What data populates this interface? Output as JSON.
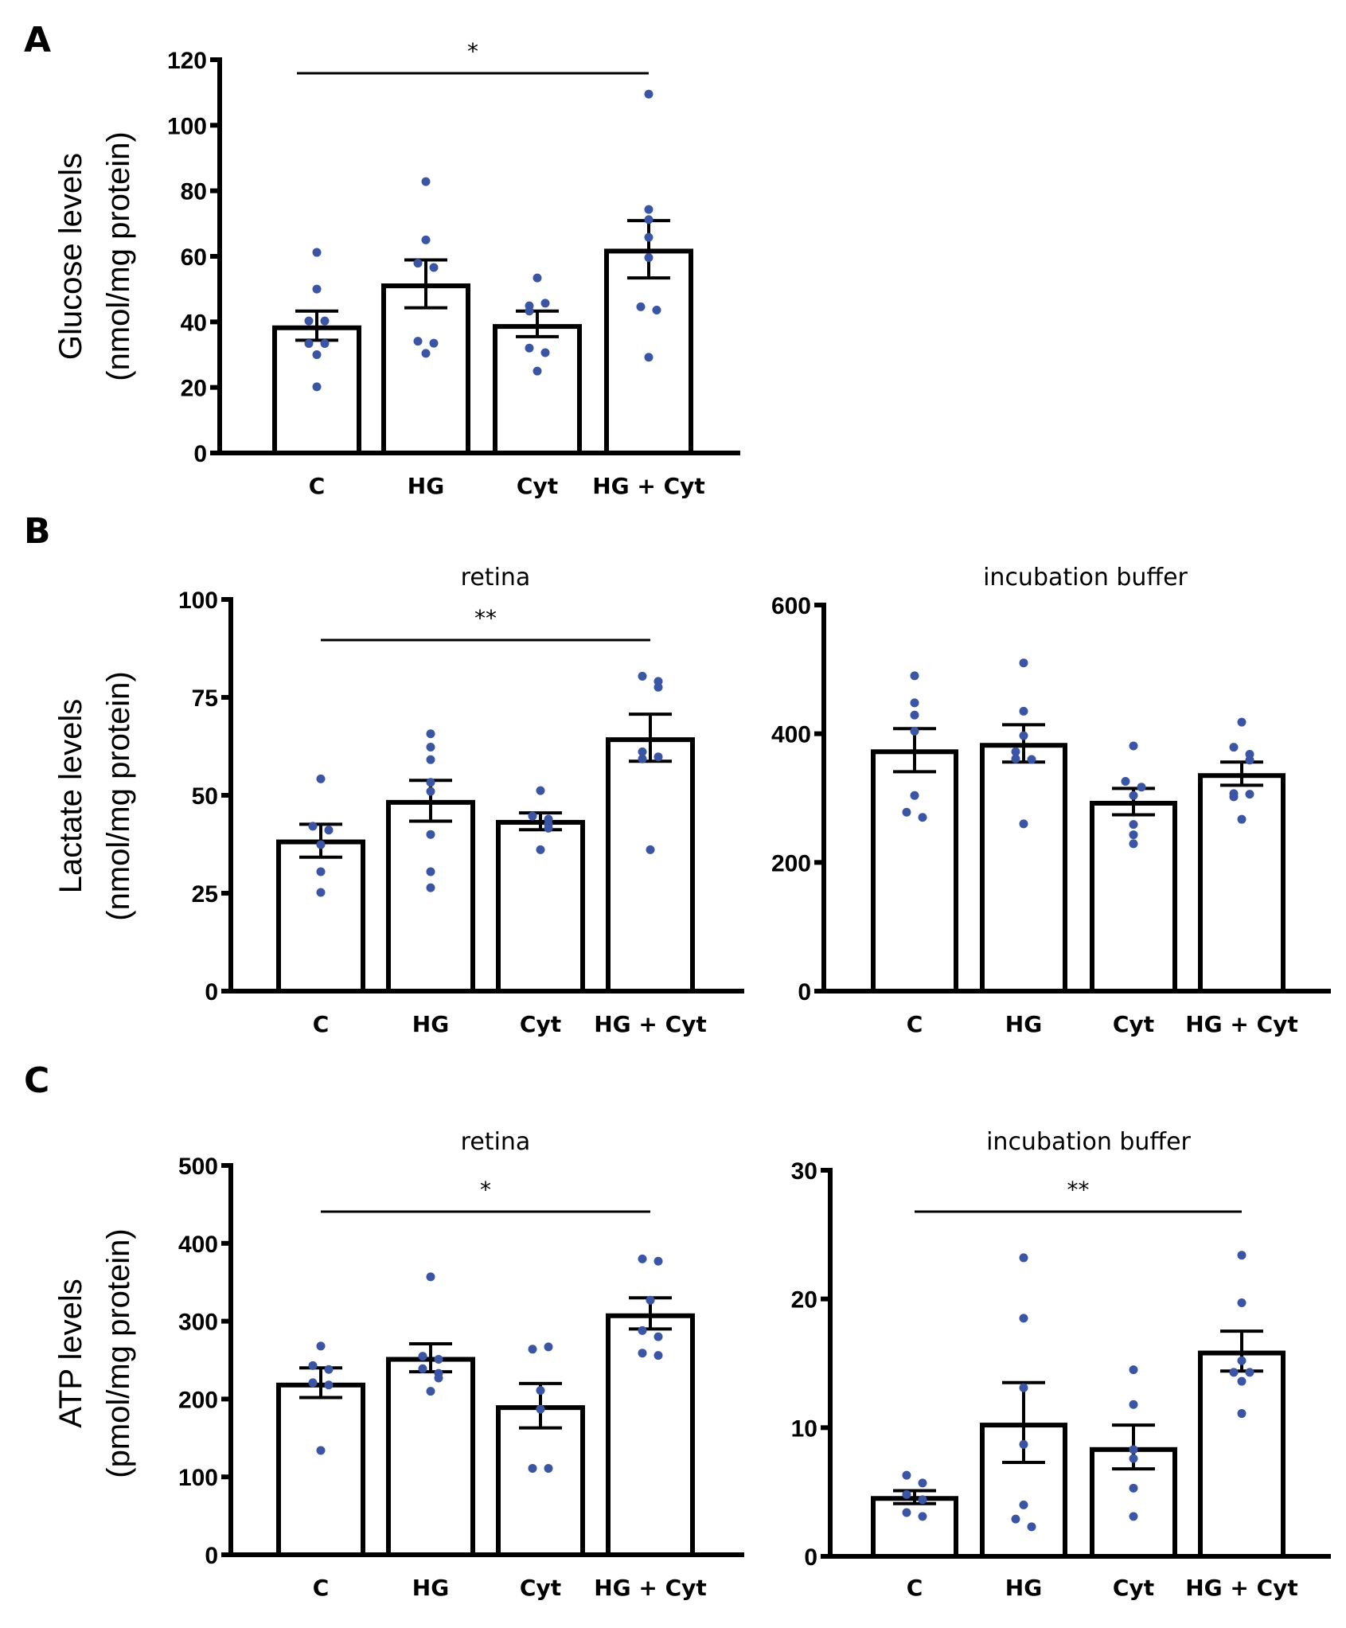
{
  "figure": {
    "panel_letters": [
      "A",
      "B",
      "C"
    ],
    "point_color": "#3a55a4",
    "bar_fill": "#ffffff",
    "line_color": "#000000"
  },
  "chart_data": [
    {
      "id": "A",
      "type": "bar",
      "title": "",
      "ylabel_line1": "Glucose levels",
      "ylabel_line2": "(nmol/mg protein)",
      "categories": [
        "C",
        "HG",
        "Cyt",
        "HG + Cyt"
      ],
      "ylim": [
        0,
        120
      ],
      "yticks": [
        0,
        20,
        40,
        60,
        80,
        100,
        120
      ],
      "values": [
        38.2,
        51.0,
        38.6,
        61.6
      ],
      "sem_upper": [
        43.3,
        58.9,
        43.3,
        70.9
      ],
      "sem_lower": [
        34.4,
        44.3,
        35.5,
        53.4
      ],
      "points": [
        [
          61.2,
          50.0,
          40.3,
          40.3,
          33.4,
          33.4,
          30.0,
          20.2
        ],
        [
          82.8,
          65.0,
          57.9,
          56.6,
          34.1,
          33.5,
          30.4
        ],
        [
          53.4,
          44.9,
          45.7,
          43.3,
          32.0,
          30.6,
          25.0
        ],
        [
          109.5,
          74.3,
          71.2,
          65.8,
          59.6,
          44.6,
          43.6,
          29.2
        ]
      ],
      "significance": {
        "from": "C",
        "to": "HG + Cyt",
        "label": "*"
      }
    },
    {
      "id": "B-retina",
      "type": "bar",
      "title": "retina",
      "ylabel_line1": "Lactate levels",
      "ylabel_line2": "(nmol/mg protein)",
      "categories": [
        "C",
        "HG",
        "Cyt",
        "HG + Cyt"
      ],
      "ylim": [
        0,
        100
      ],
      "yticks": [
        0,
        25,
        50,
        75,
        100
      ],
      "values": [
        38.1,
        48.2,
        43.1,
        64.2
      ],
      "sem_upper": [
        42.6,
        53.8,
        45.5,
        70.7
      ],
      "sem_lower": [
        34.2,
        43.4,
        41.2,
        58.7
      ],
      "points": [
        [
          54.2,
          42.1,
          41.1,
          37.4,
          30.5,
          25.2
        ],
        [
          65.7,
          62.3,
          59.1,
          53.3,
          51.0,
          40.0,
          30.5,
          26.4
        ],
        [
          51.2,
          44.7,
          43.9,
          42.6,
          41.6,
          36.1
        ],
        [
          80.4,
          79.1,
          77.6,
          61.1,
          59.8,
          59.3,
          36.1
        ]
      ],
      "significance": {
        "from": "C",
        "to": "HG + Cyt",
        "label": "**"
      }
    },
    {
      "id": "B-buffer",
      "type": "bar",
      "title": "incubation buffer",
      "ylabel_line1": "",
      "ylabel_line2": "",
      "categories": [
        "C",
        "HG",
        "Cyt",
        "HG + Cyt"
      ],
      "ylim": [
        0,
        600
      ],
      "yticks": [
        0,
        200,
        400,
        600
      ],
      "values": [
        372,
        382,
        292,
        335
      ],
      "sem_upper": [
        408,
        414,
        315,
        356
      ],
      "sem_lower": [
        341,
        356,
        274,
        320
      ],
      "points": [
        [
          490,
          448,
          429,
          404,
          304,
          278,
          270
        ],
        [
          510,
          435,
          397,
          372,
          360,
          361,
          260
        ],
        [
          381,
          326,
          317,
          304,
          259,
          243,
          229
        ],
        [
          418,
          379,
          368,
          359,
          307,
          306,
          302,
          267
        ]
      ],
      "significance": null
    },
    {
      "id": "C-retina",
      "type": "bar",
      "title": "retina",
      "ylabel_line1": "ATP levels",
      "ylabel_line2": "(pmol/mg protein)",
      "categories": [
        "C",
        "HG",
        "Cyt",
        "HG + Cyt"
      ],
      "ylim": [
        0,
        500
      ],
      "yticks": [
        0,
        100,
        200,
        300,
        400,
        500
      ],
      "values": [
        218,
        251,
        189,
        307
      ],
      "sem_upper": [
        240,
        271,
        220,
        330
      ],
      "sem_lower": [
        202,
        235,
        163,
        290
      ],
      "points": [
        [
          268,
          243,
          238,
          221,
          218,
          134
        ],
        [
          357,
          255,
          251,
          239,
          233,
          227,
          210
        ],
        [
          264,
          267,
          211,
          187,
          111,
          111
        ],
        [
          380,
          377,
          327,
          288,
          280,
          259,
          256
        ]
      ],
      "significance": {
        "from": "C",
        "to": "HG + Cyt",
        "label": "*"
      }
    },
    {
      "id": "C-buffer",
      "type": "bar",
      "title": "incubation buffer",
      "ylabel_line1": "",
      "ylabel_line2": "",
      "categories": [
        "C",
        "HG",
        "Cyt",
        "HG + Cyt"
      ],
      "ylim": [
        0,
        30
      ],
      "yticks": [
        0,
        10,
        20,
        30
      ],
      "values": [
        4.5,
        10.2,
        8.3,
        15.8
      ],
      "sem_upper": [
        5.1,
        13.5,
        10.2,
        17.5
      ],
      "sem_lower": [
        4.1,
        7.3,
        6.8,
        14.4
      ],
      "points": [
        [
          6.3,
          5.7,
          4.8,
          4.4,
          3.4,
          3.1
        ],
        [
          23.2,
          18.5,
          13.1,
          8.7,
          4.0,
          2.9,
          2.3
        ],
        [
          14.5,
          11.8,
          8.3,
          7.6,
          5.3,
          3.1
        ],
        [
          23.4,
          19.7,
          15.2,
          14.3,
          14.3,
          13.6,
          11.1
        ]
      ],
      "significance": {
        "from": "C",
        "to": "HG + Cyt",
        "label": "**"
      }
    }
  ]
}
